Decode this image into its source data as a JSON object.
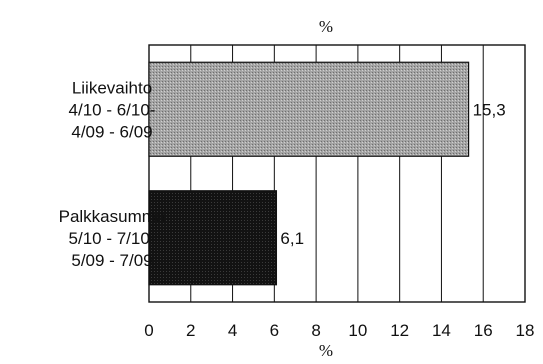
{
  "chart_data": {
    "type": "bar",
    "orientation": "horizontal",
    "title": "%",
    "xlabel": "%",
    "ylabel": "",
    "xlim": [
      0,
      18
    ],
    "x_ticks": [
      "0",
      "2",
      "4",
      "6",
      "8",
      "10",
      "12",
      "14",
      "16",
      "18"
    ],
    "grid": "vertical",
    "categories": [
      [
        "Liikevaihto",
        "4/10 - 6/10-",
        "4/09 - 6/09"
      ],
      [
        "Palkkasumma",
        "5/10 - 7/10-",
        "5/09 - 7/09"
      ]
    ],
    "values": [
      15.3,
      6.1
    ],
    "value_labels": [
      "15,3",
      "6,1"
    ],
    "bar_colors": [
      "#9a9a9a",
      "#141414"
    ]
  }
}
